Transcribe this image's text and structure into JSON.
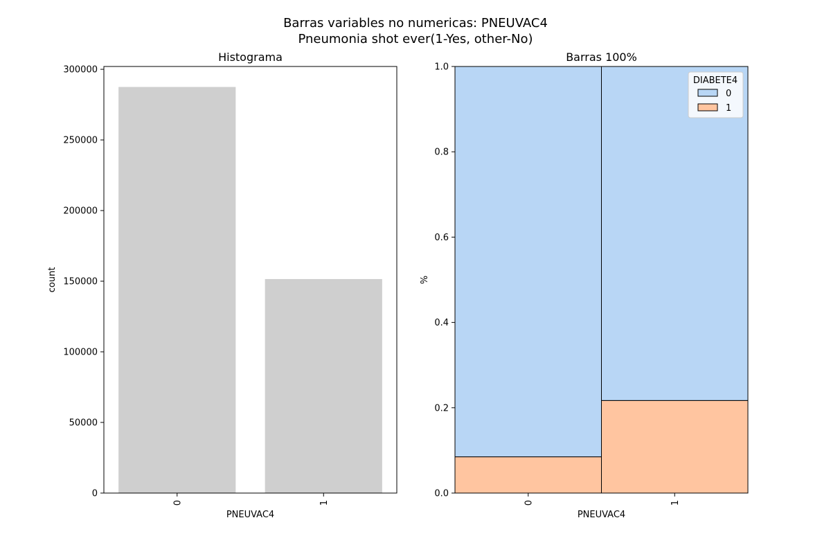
{
  "figure": {
    "title_line1": "Barras variables no numericas: PNEUVAC4",
    "title_line2": "Pneumonia shot ever(1-Yes, other-No)"
  },
  "chart_data": [
    {
      "type": "bar",
      "title": "Histograma",
      "xlabel": "PNEUVAC4",
      "ylabel": "count",
      "categories": [
        "0",
        "1"
      ],
      "values": [
        287500,
        151500
      ],
      "ylim": [
        0,
        302000
      ],
      "yticks": [
        0,
        50000,
        100000,
        150000,
        200000,
        250000,
        300000
      ],
      "grid": false,
      "bar_color": "#cfcfcf"
    },
    {
      "type": "bar",
      "stacked": true,
      "title": "Barras 100%",
      "xlabel": "PNEUVAC4",
      "ylabel": "%",
      "categories": [
        "0",
        "1"
      ],
      "ylim": [
        0,
        1
      ],
      "yticks": [
        0.0,
        0.2,
        0.4,
        0.6,
        0.8,
        1.0
      ],
      "grid": false,
      "legend": {
        "title": "DIABETE4",
        "placement": "top-right"
      },
      "series": [
        {
          "name": "0",
          "values": [
            0.915,
            0.783
          ],
          "color": "#b8d6f5"
        },
        {
          "name": "1",
          "values": [
            0.085,
            0.217
          ],
          "color": "#ffc5a0"
        }
      ]
    }
  ]
}
